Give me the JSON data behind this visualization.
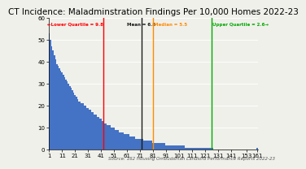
{
  "title": "CT Incidence: Maladminstration Findings Per 10,000 Homes 2022-23",
  "title_fontsize": 7.5,
  "bar_color": "#4472C4",
  "background_color": "#f0f0eb",
  "ylim": [
    0,
    60
  ],
  "xlim": [
    0.5,
    162
  ],
  "yticks": [
    0,
    10,
    20,
    30,
    40,
    50,
    60
  ],
  "xticks": [
    1,
    11,
    21,
    31,
    41,
    51,
    61,
    71,
    81,
    91,
    101,
    111,
    121,
    131,
    141,
    153,
    161
  ],
  "tick_fontsize": 5.0,
  "lower_quartile_x": 43,
  "lower_quartile_color": "#ff0000",
  "lower_quartile_label": "←Lower Quartile = 9.8",
  "mean_x": 72,
  "mean_color": "#1a1a1a",
  "mean_label": "Mean = 6.8",
  "median_x": 81,
  "median_color": "#ff8c00",
  "median_label": "Median = 5.5",
  "upper_quartile_x": 126,
  "upper_quartile_color": "#00aa00",
  "upper_quartile_label": "Upper Quartile = 2.6→",
  "source_text": "Source: 162 Housing Ombudsman Landlord Performance Reports 2022-23",
  "source_fontsize": 4.0,
  "n_bars": 161,
  "bar_heights": [
    53,
    50,
    47,
    45,
    43,
    41,
    39,
    38,
    37,
    36,
    35,
    34,
    33,
    32,
    31,
    30,
    29,
    28,
    27,
    26,
    25,
    24,
    23,
    22,
    22,
    21,
    21,
    20,
    20,
    19,
    19,
    18,
    18,
    17,
    17,
    16,
    16,
    15,
    15,
    14,
    14,
    13,
    13,
    12,
    12,
    11,
    11,
    11,
    10,
    10,
    10,
    9,
    9,
    9,
    8,
    8,
    8,
    8,
    7,
    7,
    7,
    7,
    6,
    6,
    6,
    6,
    6,
    5,
    5,
    5,
    5,
    5,
    5,
    4,
    4,
    4,
    4,
    4,
    4,
    4,
    3,
    3,
    3,
    3,
    3,
    3,
    3,
    3,
    3,
    3,
    2,
    2,
    2,
    2,
    2,
    2,
    2,
    2,
    2,
    2,
    2,
    2,
    2,
    2,
    2,
    1,
    1,
    1,
    1,
    1,
    1,
    1,
    1,
    1,
    1,
    1,
    1,
    1,
    1,
    1,
    1,
    1,
    1,
    1,
    1,
    1,
    1,
    0,
    0,
    0,
    0,
    0,
    0,
    0,
    0,
    0,
    0,
    0,
    0,
    0,
    0,
    0,
    0,
    0,
    0,
    0,
    0,
    0,
    0,
    0,
    0,
    0,
    0,
    0,
    0,
    0,
    0,
    0,
    0,
    0,
    1
  ]
}
